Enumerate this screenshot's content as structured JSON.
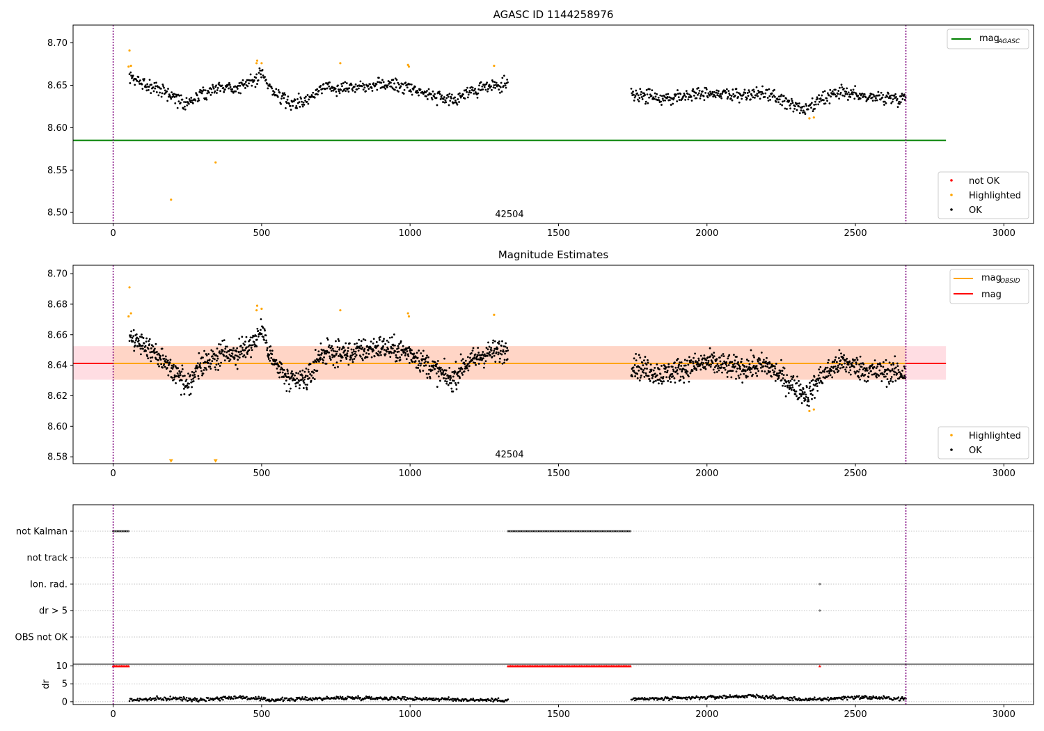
{
  "chart_data": [
    {
      "type": "scatter",
      "title": "AGASC ID 1144258976",
      "xlabel": "",
      "ylabel": "",
      "xlim": [
        -135,
        3100
      ],
      "ylim": [
        8.487,
        8.721
      ],
      "xticks": [
        0,
        500,
        1000,
        1500,
        2000,
        2500,
        3000
      ],
      "yticks": [
        8.5,
        8.55,
        8.6,
        8.65,
        8.7
      ],
      "ytick_labels": [
        "8.50",
        "8.55",
        "8.60",
        "8.65",
        "8.70"
      ],
      "vlines": [
        0,
        2670
      ],
      "annotation": {
        "text": "42504",
        "x": 1335
      },
      "hlines": [
        {
          "name": "mag_AGASC",
          "y": 8.585,
          "x0": -135,
          "x1": 2805,
          "color": "#008000"
        }
      ],
      "point_groups": [
        {
          "name": "OK",
          "color": "#000000",
          "ranges": [
            {
              "x0": 55,
              "x1": 1330,
              "step": 2,
              "anchors": [
                [
                  55,
                  8.658
                ],
                [
                  150,
                  8.647
                ],
                [
                  245,
                  8.628
                ],
                [
                  300,
                  8.64
                ],
                [
                  360,
                  8.648
                ],
                [
                  420,
                  8.647
                ],
                [
                  480,
                  8.657
                ],
                [
                  500,
                  8.664
                ],
                [
                  540,
                  8.642
                ],
                [
                  600,
                  8.628
                ],
                [
                  660,
                  8.632
                ],
                [
                  700,
                  8.648
                ],
                [
                  800,
                  8.648
                ],
                [
                  900,
                  8.652
                ],
                [
                  1000,
                  8.648
                ],
                [
                  1060,
                  8.64
                ],
                [
                  1140,
                  8.63
                ],
                [
                  1180,
                  8.64
                ],
                [
                  1260,
                  8.648
                ],
                [
                  1330,
                  8.65
                ]
              ],
              "noise": 0.007
            },
            {
              "x0": 1745,
              "x1": 2670,
              "step": 2,
              "anchors": [
                [
                  1745,
                  8.641
                ],
                [
                  1780,
                  8.638
                ],
                [
                  1850,
                  8.634
                ],
                [
                  2000,
                  8.642
                ],
                [
                  2100,
                  8.638
                ],
                [
                  2200,
                  8.64
                ],
                [
                  2280,
                  8.628
                ],
                [
                  2340,
                  8.62
                ],
                [
                  2380,
                  8.632
                ],
                [
                  2450,
                  8.642
                ],
                [
                  2550,
                  8.636
                ],
                [
                  2670,
                  8.635
                ]
              ],
              "noise": 0.007
            }
          ]
        },
        {
          "name": "Highlighted",
          "color": "#ffa500",
          "points": [
            [
              55,
              8.691
            ],
            [
              52,
              8.672
            ],
            [
              60,
              8.673
            ],
            [
              195,
              8.515
            ],
            [
              345,
              8.559
            ],
            [
              483,
              8.676
            ],
            [
              485,
              8.679
            ],
            [
              500,
              8.676
            ],
            [
              765,
              8.676
            ],
            [
              993,
              8.674
            ],
            [
              996,
              8.672
            ],
            [
              1283,
              8.673
            ],
            [
              2345,
              8.611
            ],
            [
              2360,
              8.612
            ]
          ]
        },
        {
          "name": "not OK",
          "color": "#ff0000",
          "points": []
        }
      ],
      "legends": [
        {
          "placement": "upper-right",
          "entries": [
            {
              "label": "mag",
              "subscript": "AGASC",
              "kind": "line",
              "color": "#008000"
            }
          ]
        },
        {
          "placement": "lower-right",
          "entries": [
            {
              "label": "not OK",
              "kind": "dot",
              "color": "#ff0000"
            },
            {
              "label": "Highlighted",
              "kind": "dot",
              "color": "#ffa500"
            },
            {
              "label": "OK",
              "kind": "dot",
              "color": "#000000"
            }
          ]
        }
      ]
    },
    {
      "type": "scatter",
      "title": "Magnitude Estimates",
      "xlabel": "",
      "ylabel": "",
      "xlim": [
        -135,
        3100
      ],
      "ylim": [
        8.5755,
        8.7055
      ],
      "xticks": [
        0,
        500,
        1000,
        1500,
        2000,
        2500,
        3000
      ],
      "yticks": [
        8.58,
        8.6,
        8.62,
        8.64,
        8.66,
        8.68,
        8.7
      ],
      "ytick_labels": [
        "8.58",
        "8.60",
        "8.62",
        "8.64",
        "8.66",
        "8.68",
        "8.70"
      ],
      "vlines": [
        0,
        2670
      ],
      "annotation": {
        "text": "42504",
        "x": 1335
      },
      "bands": [
        {
          "x0": -135,
          "x1": 2805,
          "y0": 8.6305,
          "y1": 8.6525,
          "color": "#ffdde3"
        },
        {
          "x0": 0,
          "x1": 2670,
          "y0": 8.6305,
          "y1": 8.6525,
          "color": "#ffd5c6"
        }
      ],
      "hlines": [
        {
          "name": "mag",
          "y": 8.6412,
          "x0": -135,
          "x1": 2805,
          "color": "#ff0000"
        },
        {
          "name": "mag_OBSID",
          "y": 8.6412,
          "x0": 0,
          "x1": 2670,
          "color": "#ffa500"
        }
      ],
      "point_groups": [
        {
          "name": "OK",
          "color": "#000000",
          "ranges": [
            {
              "x0": 55,
              "x1": 1330,
              "step": 1.2,
              "anchors": [
                [
                  55,
                  8.658
                ],
                [
                  150,
                  8.647
                ],
                [
                  245,
                  8.628
                ],
                [
                  300,
                  8.64
                ],
                [
                  360,
                  8.648
                ],
                [
                  420,
                  8.647
                ],
                [
                  480,
                  8.657
                ],
                [
                  500,
                  8.664
                ],
                [
                  540,
                  8.642
                ],
                [
                  600,
                  8.628
                ],
                [
                  660,
                  8.632
                ],
                [
                  700,
                  8.648
                ],
                [
                  800,
                  8.648
                ],
                [
                  900,
                  8.652
                ],
                [
                  1000,
                  8.648
                ],
                [
                  1060,
                  8.64
                ],
                [
                  1140,
                  8.63
                ],
                [
                  1180,
                  8.64
                ],
                [
                  1260,
                  8.648
                ],
                [
                  1330,
                  8.65
                ]
              ],
              "noise": 0.007
            },
            {
              "x0": 1745,
              "x1": 2670,
              "step": 1.2,
              "anchors": [
                [
                  1745,
                  8.641
                ],
                [
                  1780,
                  8.638
                ],
                [
                  1850,
                  8.634
                ],
                [
                  2000,
                  8.642
                ],
                [
                  2100,
                  8.638
                ],
                [
                  2200,
                  8.64
                ],
                [
                  2280,
                  8.628
                ],
                [
                  2340,
                  8.62
                ],
                [
                  2380,
                  8.632
                ],
                [
                  2450,
                  8.642
                ],
                [
                  2550,
                  8.636
                ],
                [
                  2670,
                  8.635
                ]
              ],
              "noise": 0.007
            }
          ]
        },
        {
          "name": "Highlighted",
          "color": "#ffa500",
          "points": [
            [
              55,
              8.691
            ],
            [
              52,
              8.672
            ],
            [
              60,
              8.674
            ],
            [
              483,
              8.676
            ],
            [
              485,
              8.679
            ],
            [
              500,
              8.677
            ],
            [
              765,
              8.676
            ],
            [
              993,
              8.674
            ],
            [
              996,
              8.672
            ],
            [
              1283,
              8.673
            ],
            [
              2345,
              8.61
            ],
            [
              2360,
              8.611
            ]
          ]
        }
      ],
      "markers": [
        {
          "name": "Highlighted",
          "shape": "triangle-down",
          "color": "#ffa500",
          "points": [
            [
              195,
              8.5775
            ],
            [
              345,
              8.5775
            ]
          ]
        }
      ],
      "legends": [
        {
          "placement": "upper-right",
          "entries": [
            {
              "label": "mag",
              "subscript": "OBSID",
              "kind": "line",
              "color": "#ffa500"
            },
            {
              "label": "mag",
              "kind": "line",
              "color": "#ff0000"
            }
          ]
        },
        {
          "placement": "lower-right",
          "entries": [
            {
              "label": "Highlighted",
              "kind": "dot",
              "color": "#ffa500"
            },
            {
              "label": "OK",
              "kind": "dot",
              "color": "#000000"
            }
          ]
        }
      ]
    },
    {
      "type": "scatter",
      "title": "",
      "xlabel": "",
      "ylabel": "",
      "xlim": [
        -135,
        3100
      ],
      "categories": [
        "not Kalman",
        "not track",
        "Ion. rad.",
        "dr > 5",
        "OBS not OK"
      ],
      "vlines": [
        0,
        2670
      ],
      "flags": [
        {
          "category": "not Kalman",
          "segments": [
            [
              0,
              55
            ],
            [
              1330,
              1745
            ]
          ]
        },
        {
          "category": "not track",
          "segments": []
        },
        {
          "category": "Ion. rad.",
          "segments": [
            [
              2380,
              2380
            ]
          ]
        },
        {
          "category": "dr > 5",
          "segments": [
            [
              2380,
              2380
            ]
          ]
        },
        {
          "category": "OBS not OK",
          "segments": []
        }
      ]
    },
    {
      "type": "scatter",
      "title": "",
      "xlabel": "",
      "ylabel": "dr",
      "xlim": [
        -135,
        3100
      ],
      "ylim": [
        -0.8,
        10.5
      ],
      "xticks": [
        0,
        500,
        1000,
        1500,
        2000,
        2500,
        3000
      ],
      "yticks": [
        0,
        5,
        10
      ],
      "ytick_labels": [
        "0",
        "5",
        "10"
      ],
      "vlines": [
        0,
        2670
      ],
      "series": [
        {
          "name": "dr",
          "color": "#000000",
          "segments": [
            [
              55,
              1330
            ],
            [
              1745,
              2670
            ]
          ],
          "anchors": [
            [
              55,
              0.5
            ],
            [
              200,
              0.9
            ],
            [
              300,
              0.6
            ],
            [
              420,
              1.3
            ],
            [
              520,
              0.5
            ],
            [
              700,
              0.9
            ],
            [
              800,
              1.1
            ],
            [
              1000,
              0.9
            ],
            [
              1150,
              0.6
            ],
            [
              1330,
              0.4
            ],
            [
              1745,
              0.7
            ],
            [
              1900,
              0.9
            ],
            [
              2000,
              1.2
            ],
            [
              2150,
              1.6
            ],
            [
              2250,
              1.0
            ],
            [
              2350,
              0.5
            ],
            [
              2500,
              1.3
            ],
            [
              2670,
              0.8
            ]
          ]
        },
        {
          "name": "dr clipped",
          "color": "#ff0000",
          "marker": "triangle-up",
          "segments": [
            [
              0,
              55
            ],
            [
              1330,
              1745
            ],
            [
              2380,
              2380
            ]
          ],
          "y": 10
        }
      ]
    }
  ]
}
